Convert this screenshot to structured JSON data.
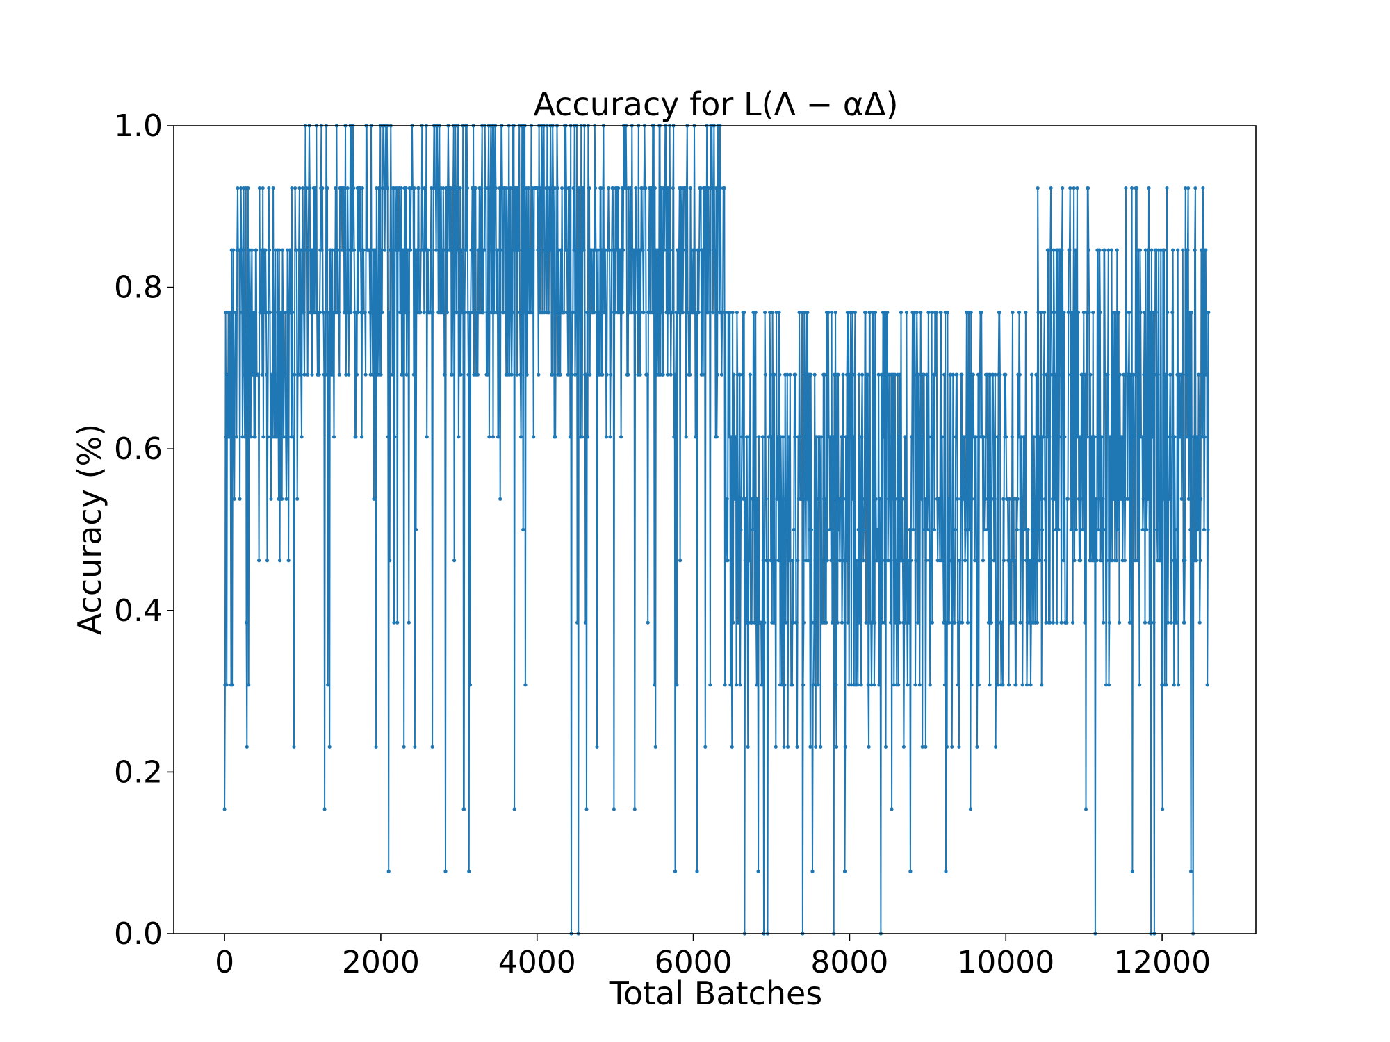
{
  "chart_data": {
    "type": "line",
    "title": "Accuracy for L(Λ − αΔ)",
    "xlabel": "Total Batches",
    "ylabel": "Accuracy (%)",
    "xlim": [
      -650,
      13200
    ],
    "ylim": [
      0.0,
      1.0
    ],
    "x_ticks": [
      0,
      2000,
      4000,
      6000,
      8000,
      10000,
      12000
    ],
    "x_tick_labels": [
      "0",
      "2000",
      "4000",
      "6000",
      "8000",
      "10000",
      "12000"
    ],
    "y_ticks": [
      0.0,
      0.2,
      0.4,
      0.6,
      0.8,
      1.0
    ],
    "y_tick_labels": [
      "0.0",
      "0.2",
      "0.4",
      "0.6",
      "0.8",
      "1.0"
    ],
    "grid": false,
    "series": [
      {
        "color": "#1f77b4",
        "marker": "point",
        "x_start": 0,
        "x_step": 7,
        "n_points": 1800,
        "accuracy_levels": [
          0.0,
          0.077,
          0.154,
          0.231,
          0.308,
          0.385,
          0.462,
          0.5,
          0.538,
          0.615,
          0.692,
          0.769,
          0.846,
          0.923,
          1.0
        ],
        "segments": [
          {
            "x_range": [
              0,
              1000
            ],
            "accuracy_range": [
              0.154,
              1.0
            ],
            "typical_range": [
              0.538,
              0.923
            ]
          },
          {
            "x_range": [
              1000,
              6400
            ],
            "accuracy_range": [
              0.0,
              1.0
            ],
            "typical_range": [
              0.692,
              1.0
            ]
          },
          {
            "x_range": [
              6400,
              10400
            ],
            "accuracy_range": [
              0.0,
              1.0
            ],
            "typical_range": [
              0.308,
              0.769
            ]
          },
          {
            "x_range": [
              10400,
              12600
            ],
            "accuracy_range": [
              0.0,
              1.0
            ],
            "typical_range": [
              0.385,
              0.923
            ]
          }
        ],
        "notable_points": [
          {
            "x": 0,
            "y": 0.154
          },
          {
            "x": 4440,
            "y": 0.0
          },
          {
            "x": 6900,
            "y": 0.0
          },
          {
            "x": 7400,
            "y": 0.0
          },
          {
            "x": 7800,
            "y": 0.0
          },
          {
            "x": 8400,
            "y": 0.0
          },
          {
            "x": 11900,
            "y": 0.0
          },
          {
            "x": 12400,
            "y": 0.0
          },
          {
            "x": 12600,
            "y": 0.5
          }
        ]
      }
    ]
  }
}
